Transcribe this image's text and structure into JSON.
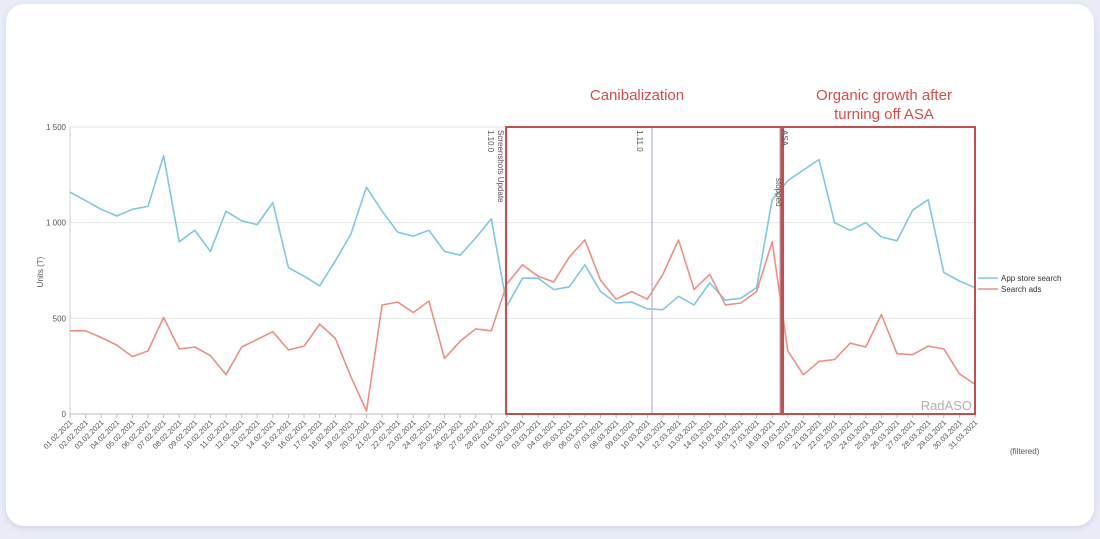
{
  "chart_data": {
    "type": "line",
    "ylabel": "Units (T)",
    "ylim": [
      0,
      1500
    ],
    "y_ticks": [
      0,
      500,
      1000,
      1500
    ],
    "y_tick_labels": [
      "0",
      "500",
      "1 000",
      "1 500"
    ],
    "x": [
      "01.02.2021",
      "02.02.2021",
      "03.02.2021",
      "04.02.2021",
      "05.02.2021",
      "06.02.2021",
      "07.02.2021",
      "08.02.2021",
      "09.02.2021",
      "10.02.2021",
      "11.02.2021",
      "12.02.2021",
      "13.02.2021",
      "14.02.2021",
      "15.02.2021",
      "16.02.2021",
      "17.02.2021",
      "18.02.2021",
      "19.02.2021",
      "20.02.2021",
      "21.02.2021",
      "22.02.2021",
      "23.02.2021",
      "24.02.2021",
      "25.02.2021",
      "26.02.2021",
      "27.02.2021",
      "28.02.2021",
      "01.03.2021",
      "02.03.2021",
      "03.03.2021",
      "04.03.2021",
      "05.03.2021",
      "06.03.2021",
      "07.03.2021",
      "08.03.2021",
      "09.03.2021",
      "10.03.2021",
      "11.03.2021",
      "12.03.2021",
      "13.03.2021",
      "14.03.2021",
      "15.03.2021",
      "16.03.2021",
      "17.03.2021",
      "18.03.2021",
      "19.03.2021",
      "20.03.2021",
      "21.03.2021",
      "22.03.2021",
      "23.03.2021",
      "24.03.2021",
      "25.03.2021",
      "26.03.2021",
      "27.03.2021",
      "28.03.2021",
      "29.03.2021",
      "30.03.2021",
      "31.03.2021"
    ],
    "series": [
      {
        "name": "App store search",
        "color": "#7ec8e3",
        "values": [
          1160,
          1115,
          1070,
          1035,
          1070,
          1085,
          1350,
          900,
          960,
          850,
          1060,
          1010,
          990,
          1105,
          765,
          720,
          670,
          800,
          940,
          1185,
          1060,
          950,
          930,
          960,
          850,
          830,
          920,
          1020,
          565,
          710,
          710,
          650,
          665,
          780,
          640,
          580,
          585,
          550,
          545,
          615,
          570,
          685,
          595,
          605,
          660,
          1120,
          1220,
          1275,
          1330,
          1000,
          960,
          1000,
          925,
          905,
          1065,
          1120,
          740,
          695,
          660
        ]
      },
      {
        "name": "Search ads",
        "color": "#ee8f84",
        "values": [
          435,
          435,
          400,
          360,
          300,
          330,
          505,
          340,
          350,
          305,
          205,
          350,
          390,
          430,
          335,
          355,
          470,
          395,
          195,
          15,
          570,
          585,
          530,
          590,
          290,
          380,
          445,
          435,
          680,
          780,
          720,
          690,
          820,
          910,
          700,
          600,
          640,
          600,
          730,
          910,
          650,
          730,
          570,
          580,
          640,
          900,
          330,
          205,
          275,
          285,
          370,
          350,
          520,
          315,
          310,
          355,
          340,
          210,
          155
        ]
      }
    ],
    "annotations": {
      "screenshots": "Screenshots Update",
      "v1": "1.10.0",
      "v2": "1.11.0",
      "asa": "ASA",
      "stopped": "stopped",
      "canibalization": "Canibalization",
      "organic_line1": "Organic growth after",
      "organic_line2": "turning off ASA"
    },
    "watermark": "RadASO",
    "filtered_label": "(filtered)",
    "legend_position": "right",
    "grid": true
  }
}
